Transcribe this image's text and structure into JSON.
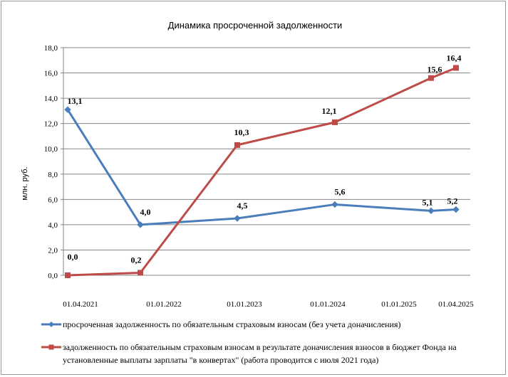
{
  "chart_data": {
    "type": "line",
    "title": "Динамика просроченной задолженности",
    "ylabel": "млн. руб.",
    "ylim": [
      0,
      18
    ],
    "yticks": [
      "0,0",
      "2,0",
      "4,0",
      "6,0",
      "8,0",
      "10,0",
      "12,0",
      "14,0",
      "16,0",
      "18,0"
    ],
    "xtick_labels": [
      "01.04.2021",
      "01.01.2022",
      "01.01.2023",
      "01.01.2024",
      "01.01.2025",
      "01.04.2025"
    ],
    "grid": true,
    "legend_position": "bottom",
    "series": [
      {
        "name": "просроченная задолженность  по обязательным страховым взносам (без учета доначисления)",
        "color": "#4a7ebb",
        "marker": "diamond",
        "x": [
          "01.04.2021",
          "01.01.2022",
          "01.01.2023",
          "01.01.2024",
          "01.01.2025",
          "01.04.2025"
        ],
        "values": [
          13.1,
          4.0,
          4.5,
          5.6,
          5.1,
          5.2
        ],
        "labels": [
          "13,1",
          "4,0",
          "4,5",
          "5,6",
          "5,1",
          "5,2"
        ]
      },
      {
        "name_lines": [
          "задолженность  по обязательным страховым взносам в результате доначисления взносов в бюджет Фонда на",
          "установленные выплаты  зарплаты \"в конвертах\"  (работа проводится  с июля 2021  года)"
        ],
        "color": "#be4b48",
        "marker": "square",
        "x": [
          "01.04.2021",
          "01.01.2022",
          "01.01.2023",
          "01.01.2024",
          "01.01.2025",
          "01.04.2025"
        ],
        "values": [
          0.0,
          0.2,
          10.3,
          12.1,
          15.6,
          16.4
        ],
        "labels": [
          "0,0",
          "0,2",
          "10,3",
          "12,1",
          "15,6",
          "16,4"
        ]
      }
    ]
  }
}
